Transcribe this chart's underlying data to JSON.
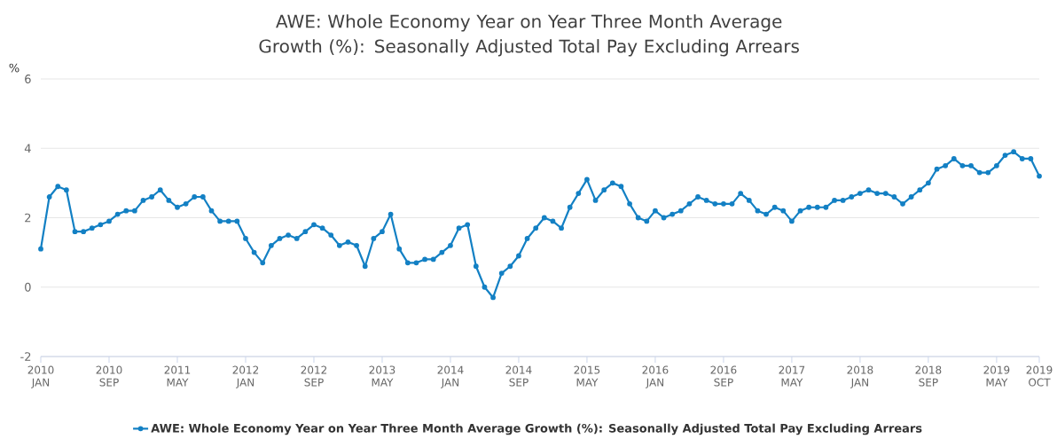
{
  "chart_data": {
    "type": "line",
    "title": "AWE: Whole Economy Year on Year Three Month Average Growth (%): Seasonally Adjusted Total Pay Excluding Arrears",
    "ylabel": "%",
    "x": [
      "2010-01",
      "2010-02",
      "2010-03",
      "2010-04",
      "2010-05",
      "2010-06",
      "2010-07",
      "2010-08",
      "2010-09",
      "2010-10",
      "2010-11",
      "2010-12",
      "2011-01",
      "2011-02",
      "2011-03",
      "2011-04",
      "2011-05",
      "2011-06",
      "2011-07",
      "2011-08",
      "2011-09",
      "2011-10",
      "2011-11",
      "2011-12",
      "2012-01",
      "2012-02",
      "2012-03",
      "2012-04",
      "2012-05",
      "2012-06",
      "2012-07",
      "2012-08",
      "2012-09",
      "2012-10",
      "2012-11",
      "2012-12",
      "2013-01",
      "2013-02",
      "2013-03",
      "2013-04",
      "2013-05",
      "2013-06",
      "2013-07",
      "2013-08",
      "2013-09",
      "2013-10",
      "2013-11",
      "2013-12",
      "2014-01",
      "2014-02",
      "2014-03",
      "2014-04",
      "2014-05",
      "2014-06",
      "2014-07",
      "2014-08",
      "2014-09",
      "2014-10",
      "2014-11",
      "2014-12",
      "2015-01",
      "2015-02",
      "2015-03",
      "2015-04",
      "2015-05",
      "2015-06",
      "2015-07",
      "2015-08",
      "2015-09",
      "2015-10",
      "2015-11",
      "2015-12",
      "2016-01",
      "2016-02",
      "2016-03",
      "2016-04",
      "2016-05",
      "2016-06",
      "2016-07",
      "2016-08",
      "2016-09",
      "2016-10",
      "2016-11",
      "2016-12",
      "2017-01",
      "2017-02",
      "2017-03",
      "2017-04",
      "2017-05",
      "2017-06",
      "2017-07",
      "2017-08",
      "2017-09",
      "2017-10",
      "2017-11",
      "2017-12",
      "2018-01",
      "2018-02",
      "2018-03",
      "2018-04",
      "2018-05",
      "2018-06",
      "2018-07",
      "2018-08",
      "2018-09",
      "2018-10",
      "2018-11",
      "2018-12",
      "2019-01",
      "2019-02",
      "2019-03",
      "2019-04",
      "2019-05",
      "2019-06",
      "2019-07",
      "2019-08",
      "2019-09",
      "2019-10"
    ],
    "series": [
      {
        "name": "AWE: Whole Economy Year on Year Three Month Average Growth (%): Seasonally Adjusted Total Pay Excluding Arrears",
        "color": "#1380c4",
        "values": [
          1.1,
          2.6,
          2.9,
          2.8,
          1.6,
          1.6,
          1.7,
          1.8,
          1.9,
          2.1,
          2.2,
          2.2,
          2.5,
          2.6,
          2.8,
          2.5,
          2.3,
          2.4,
          2.6,
          2.6,
          2.2,
          1.9,
          1.9,
          1.9,
          1.4,
          1.0,
          0.7,
          1.2,
          1.4,
          1.5,
          1.4,
          1.6,
          1.8,
          1.7,
          1.5,
          1.2,
          1.3,
          1.2,
          0.6,
          1.4,
          1.6,
          2.1,
          1.1,
          0.7,
          0.7,
          0.8,
          0.8,
          1.0,
          1.2,
          1.7,
          1.8,
          0.6,
          0.0,
          -0.3,
          0.4,
          0.6,
          0.9,
          1.4,
          1.7,
          2.0,
          1.9,
          1.7,
          2.3,
          2.7,
          3.1,
          2.5,
          2.8,
          3.0,
          2.9,
          2.4,
          2.0,
          1.9,
          2.2,
          2.0,
          2.1,
          2.2,
          2.4,
          2.6,
          2.5,
          2.4,
          2.4,
          2.4,
          2.7,
          2.5,
          2.2,
          2.1,
          2.3,
          2.2,
          1.9,
          2.2,
          2.3,
          2.3,
          2.3,
          2.5,
          2.5,
          2.6,
          2.7,
          2.8,
          2.7,
          2.7,
          2.6,
          2.4,
          2.6,
          2.8,
          3.0,
          3.4,
          3.5,
          3.7,
          3.5,
          3.5,
          3.3,
          3.3,
          3.5,
          3.8,
          3.9,
          3.7,
          3.7,
          3.2
        ]
      }
    ],
    "xlim": [
      "2010-01",
      "2019-10"
    ],
    "xticks": [
      {
        "value": "2010-01",
        "label": "2010 JAN"
      },
      {
        "value": "2010-09",
        "label": "2010 SEP"
      },
      {
        "value": "2011-05",
        "label": "2011 MAY"
      },
      {
        "value": "2012-01",
        "label": "2012 JAN"
      },
      {
        "value": "2012-09",
        "label": "2012 SEP"
      },
      {
        "value": "2013-05",
        "label": "2013 MAY"
      },
      {
        "value": "2014-01",
        "label": "2014 JAN"
      },
      {
        "value": "2014-09",
        "label": "2014 SEP"
      },
      {
        "value": "2015-05",
        "label": "2015 MAY"
      },
      {
        "value": "2016-01",
        "label": "2016 JAN"
      },
      {
        "value": "2016-09",
        "label": "2016 SEP"
      },
      {
        "value": "2017-05",
        "label": "2017 MAY"
      },
      {
        "value": "2018-01",
        "label": "2018 JAN"
      },
      {
        "value": "2018-09",
        "label": "2018 SEP"
      },
      {
        "value": "2019-05",
        "label": "2019 MAY"
      },
      {
        "value": "2019-10",
        "label": "2019 OCT"
      }
    ],
    "ylim": [
      -2,
      6
    ],
    "yticks": [
      -2,
      0,
      2,
      4,
      6
    ],
    "grid": "y",
    "legend": "bottom",
    "marker": "circle",
    "line_style": "solid"
  }
}
